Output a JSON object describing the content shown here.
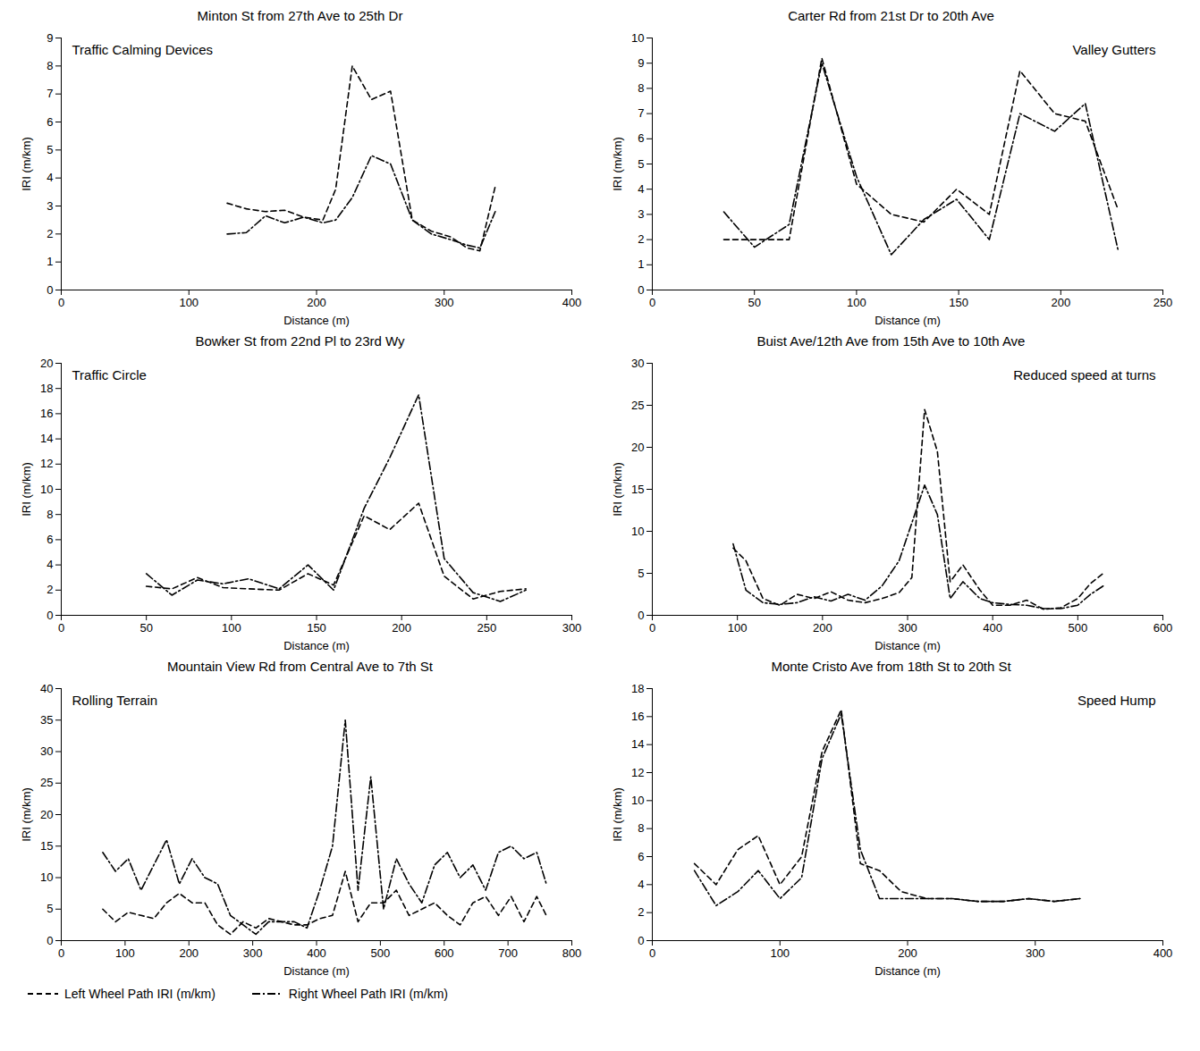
{
  "chart_data": [
    {
      "type": "line",
      "title": "Minton St from 27th Ave to 25th Dr",
      "x_label": "Distance (m)",
      "y_label": "IRI (m/km)",
      "annotations": [
        "Traffic Calming Devices"
      ],
      "x": [
        130,
        145,
        160,
        175,
        190,
        205,
        215,
        228,
        243,
        258,
        275,
        290,
        305,
        318,
        328,
        340
      ],
      "series": [
        {
          "name": "Left Wheel Path IRI (m/km)",
          "color": "#000000",
          "line_style": "dashed",
          "values": [
            3.1,
            2.9,
            2.8,
            2.85,
            2.6,
            2.5,
            3.6,
            8.0,
            6.8,
            7.1,
            2.5,
            2.1,
            1.9,
            1.5,
            1.4,
            3.7
          ]
        },
        {
          "name": "Right Wheel Path IRI (m/km)",
          "color": "#000000",
          "line_style": "dashdot",
          "values": [
            2.0,
            2.05,
            2.65,
            2.4,
            2.6,
            2.4,
            2.5,
            3.3,
            4.8,
            4.5,
            2.5,
            2.0,
            1.8,
            1.6,
            1.5,
            2.8
          ]
        }
      ],
      "xlim": [
        0,
        400
      ],
      "xticks": [
        0,
        100,
        200,
        300,
        400
      ],
      "ylim": [
        0,
        9
      ],
      "yticks": [
        0,
        1,
        2,
        3,
        4,
        5,
        6,
        7,
        8,
        9
      ]
    },
    {
      "type": "line",
      "title": "Carter Rd from 21st Dr to 20th Ave",
      "x_label": "Distance (m)",
      "y_label": "IRI (m/km)",
      "annotations": [
        "Valley Gutters"
      ],
      "x": [
        35,
        50,
        67,
        83,
        100,
        117,
        133,
        149,
        165,
        180,
        197,
        212,
        228
      ],
      "series": [
        {
          "name": "Left Wheel Path IRI (m/km)",
          "color": "#000000",
          "line_style": "dashed",
          "values": [
            2.0,
            2.0,
            2.0,
            9.2,
            4.2,
            3.0,
            2.7,
            4.0,
            3.0,
            8.7,
            7.0,
            6.7,
            3.2
          ]
        },
        {
          "name": "Right Wheel Path IRI (m/km)",
          "color": "#000000",
          "line_style": "dashdot",
          "values": [
            3.1,
            1.7,
            2.6,
            9.0,
            4.5,
            1.4,
            2.8,
            3.6,
            2.0,
            7.0,
            6.3,
            7.4,
            1.6
          ]
        }
      ],
      "xlim": [
        0,
        250
      ],
      "xticks": [
        0,
        50,
        100,
        150,
        200,
        250
      ],
      "ylim": [
        0,
        10
      ],
      "yticks": [
        0,
        1,
        2,
        3,
        4,
        5,
        6,
        7,
        8,
        9,
        10
      ]
    },
    {
      "type": "line",
      "title": "Bowker St from 22nd Pl to 23rd Wy",
      "x_label": "Distance (m)",
      "y_label": "IRI (m/km)",
      "annotations": [
        "Traffic Circle"
      ],
      "x": [
        50,
        65,
        80,
        95,
        110,
        128,
        145,
        160,
        178,
        193,
        210,
        225,
        242,
        258,
        273
      ],
      "series": [
        {
          "name": "Left Wheel Path IRI (m/km)",
          "color": "#000000",
          "line_style": "dashed",
          "values": [
            2.3,
            2.1,
            3.0,
            2.2,
            2.1,
            2.0,
            3.3,
            2.4,
            7.9,
            6.8,
            8.9,
            3.1,
            1.3,
            1.9,
            2.1
          ]
        },
        {
          "name": "Right Wheel Path IRI (m/km)",
          "color": "#000000",
          "line_style": "dashdot",
          "values": [
            3.3,
            1.6,
            2.8,
            2.5,
            2.9,
            2.1,
            4.0,
            2.0,
            8.5,
            12.5,
            17.5,
            4.5,
            1.8,
            1.1,
            2.0
          ]
        }
      ],
      "xlim": [
        0,
        300
      ],
      "xticks": [
        0,
        50,
        100,
        150,
        200,
        250,
        300
      ],
      "ylim": [
        0,
        20
      ],
      "yticks": [
        0,
        2,
        4,
        6,
        8,
        10,
        12,
        14,
        16,
        18,
        20
      ]
    },
    {
      "type": "line",
      "title": "Buist Ave/12th Ave from 15th Ave to 10th Ave",
      "x_label": "Distance (m)",
      "y_label": "IRI (m/km)",
      "annotations": [
        "Reduced speed at turns"
      ],
      "x": [
        95,
        110,
        130,
        150,
        170,
        190,
        210,
        230,
        250,
        270,
        290,
        305,
        320,
        335,
        350,
        365,
        385,
        400,
        420,
        440,
        460,
        480,
        500,
        515,
        530
      ],
      "series": [
        {
          "name": "Left Wheel Path IRI (m/km)",
          "color": "#000000",
          "line_style": "dashed",
          "values": [
            8.0,
            6.5,
            2.0,
            1.2,
            2.5,
            2.0,
            2.8,
            1.8,
            1.5,
            2.0,
            2.7,
            4.5,
            24.5,
            19.5,
            4.0,
            6.0,
            3.0,
            1.2,
            1.2,
            1.8,
            0.7,
            0.9,
            2.0,
            3.8,
            5.0
          ]
        },
        {
          "name": "Right Wheel Path IRI (m/km)",
          "color": "#000000",
          "line_style": "dashdot",
          "values": [
            8.5,
            3.0,
            1.5,
            1.3,
            1.5,
            2.2,
            1.7,
            2.5,
            1.8,
            3.5,
            6.5,
            11.0,
            15.5,
            12.0,
            2.0,
            4.0,
            2.0,
            1.5,
            1.3,
            1.2,
            0.8,
            0.8,
            1.2,
            2.5,
            3.5
          ]
        }
      ],
      "xlim": [
        0,
        600
      ],
      "xticks": [
        0,
        100,
        200,
        300,
        400,
        500,
        600
      ],
      "ylim": [
        0,
        30
      ],
      "yticks": [
        0,
        5,
        10,
        15,
        20,
        25,
        30
      ]
    },
    {
      "type": "line",
      "title": "Mountain View Rd from Central Ave to 7th St",
      "x_label": "Distance (m)",
      "y_label": "IRI (m/km)",
      "annotations": [
        "Rolling Terrain"
      ],
      "x": [
        65,
        85,
        105,
        125,
        145,
        165,
        185,
        205,
        225,
        245,
        265,
        285,
        305,
        325,
        345,
        365,
        385,
        405,
        425,
        445,
        465,
        485,
        505,
        525,
        545,
        565,
        585,
        605,
        625,
        645,
        665,
        685,
        705,
        725,
        745,
        760
      ],
      "series": [
        {
          "name": "Left Wheel Path IRI (m/km)",
          "color": "#000000",
          "line_style": "dashed",
          "values": [
            5,
            3,
            4.5,
            4,
            3.5,
            6,
            7.5,
            6,
            6,
            2.5,
            1,
            3,
            2,
            3.5,
            3,
            2.5,
            2.5,
            3.5,
            4,
            11,
            3,
            6,
            6,
            8,
            4,
            5,
            6,
            4,
            2.5,
            6,
            7,
            4,
            7,
            3,
            7,
            4
          ]
        },
        {
          "name": "Right Wheel Path IRI (m/km)",
          "color": "#000000",
          "line_style": "dashdot",
          "values": [
            14,
            11,
            13,
            8,
            12,
            16,
            9,
            13,
            10,
            9,
            4,
            2.5,
            1,
            3,
            3,
            3,
            2,
            8,
            15,
            35,
            8,
            26,
            5,
            13,
            9,
            6,
            12,
            14,
            10,
            12,
            8,
            14,
            15,
            13,
            14,
            9
          ]
        }
      ],
      "xlim": [
        0,
        800
      ],
      "xticks": [
        0,
        100,
        200,
        300,
        400,
        500,
        600,
        700,
        800
      ],
      "ylim": [
        0,
        40
      ],
      "yticks": [
        0,
        5,
        10,
        15,
        20,
        25,
        30,
        35,
        40
      ]
    },
    {
      "type": "line",
      "title": "Monte Cristo Ave from 18th St to 20th St",
      "x_label": "Distance (m)",
      "y_label": "IRI (m/km)",
      "annotations": [
        "Speed Hump"
      ],
      "x": [
        33,
        50,
        67,
        83,
        100,
        117,
        133,
        148,
        163,
        178,
        195,
        215,
        235,
        255,
        275,
        295,
        315,
        335
      ],
      "series": [
        {
          "name": "Left Wheel Path IRI (m/km)",
          "color": "#000000",
          "line_style": "dashed",
          "values": [
            5.5,
            4.0,
            6.5,
            7.5,
            4.0,
            6.0,
            13.5,
            16.5,
            5.5,
            5.0,
            3.5,
            3.0,
            3.0,
            2.8,
            2.8,
            3.0,
            2.8,
            3.0
          ]
        },
        {
          "name": "Right Wheel Path IRI (m/km)",
          "color": "#000000",
          "line_style": "dashdot",
          "values": [
            5.0,
            2.5,
            3.5,
            5.0,
            3.0,
            4.5,
            13.0,
            16.2,
            6.5,
            3.0,
            3.0,
            3.0,
            3.0,
            2.8,
            2.8,
            3.0,
            2.8,
            3.0
          ]
        }
      ],
      "xlim": [
        0,
        400
      ],
      "xticks": [
        0,
        100,
        200,
        300,
        400
      ],
      "ylim": [
        0,
        18
      ],
      "yticks": [
        0,
        2,
        4,
        6,
        8,
        10,
        12,
        14,
        16,
        18
      ]
    }
  ]
}
